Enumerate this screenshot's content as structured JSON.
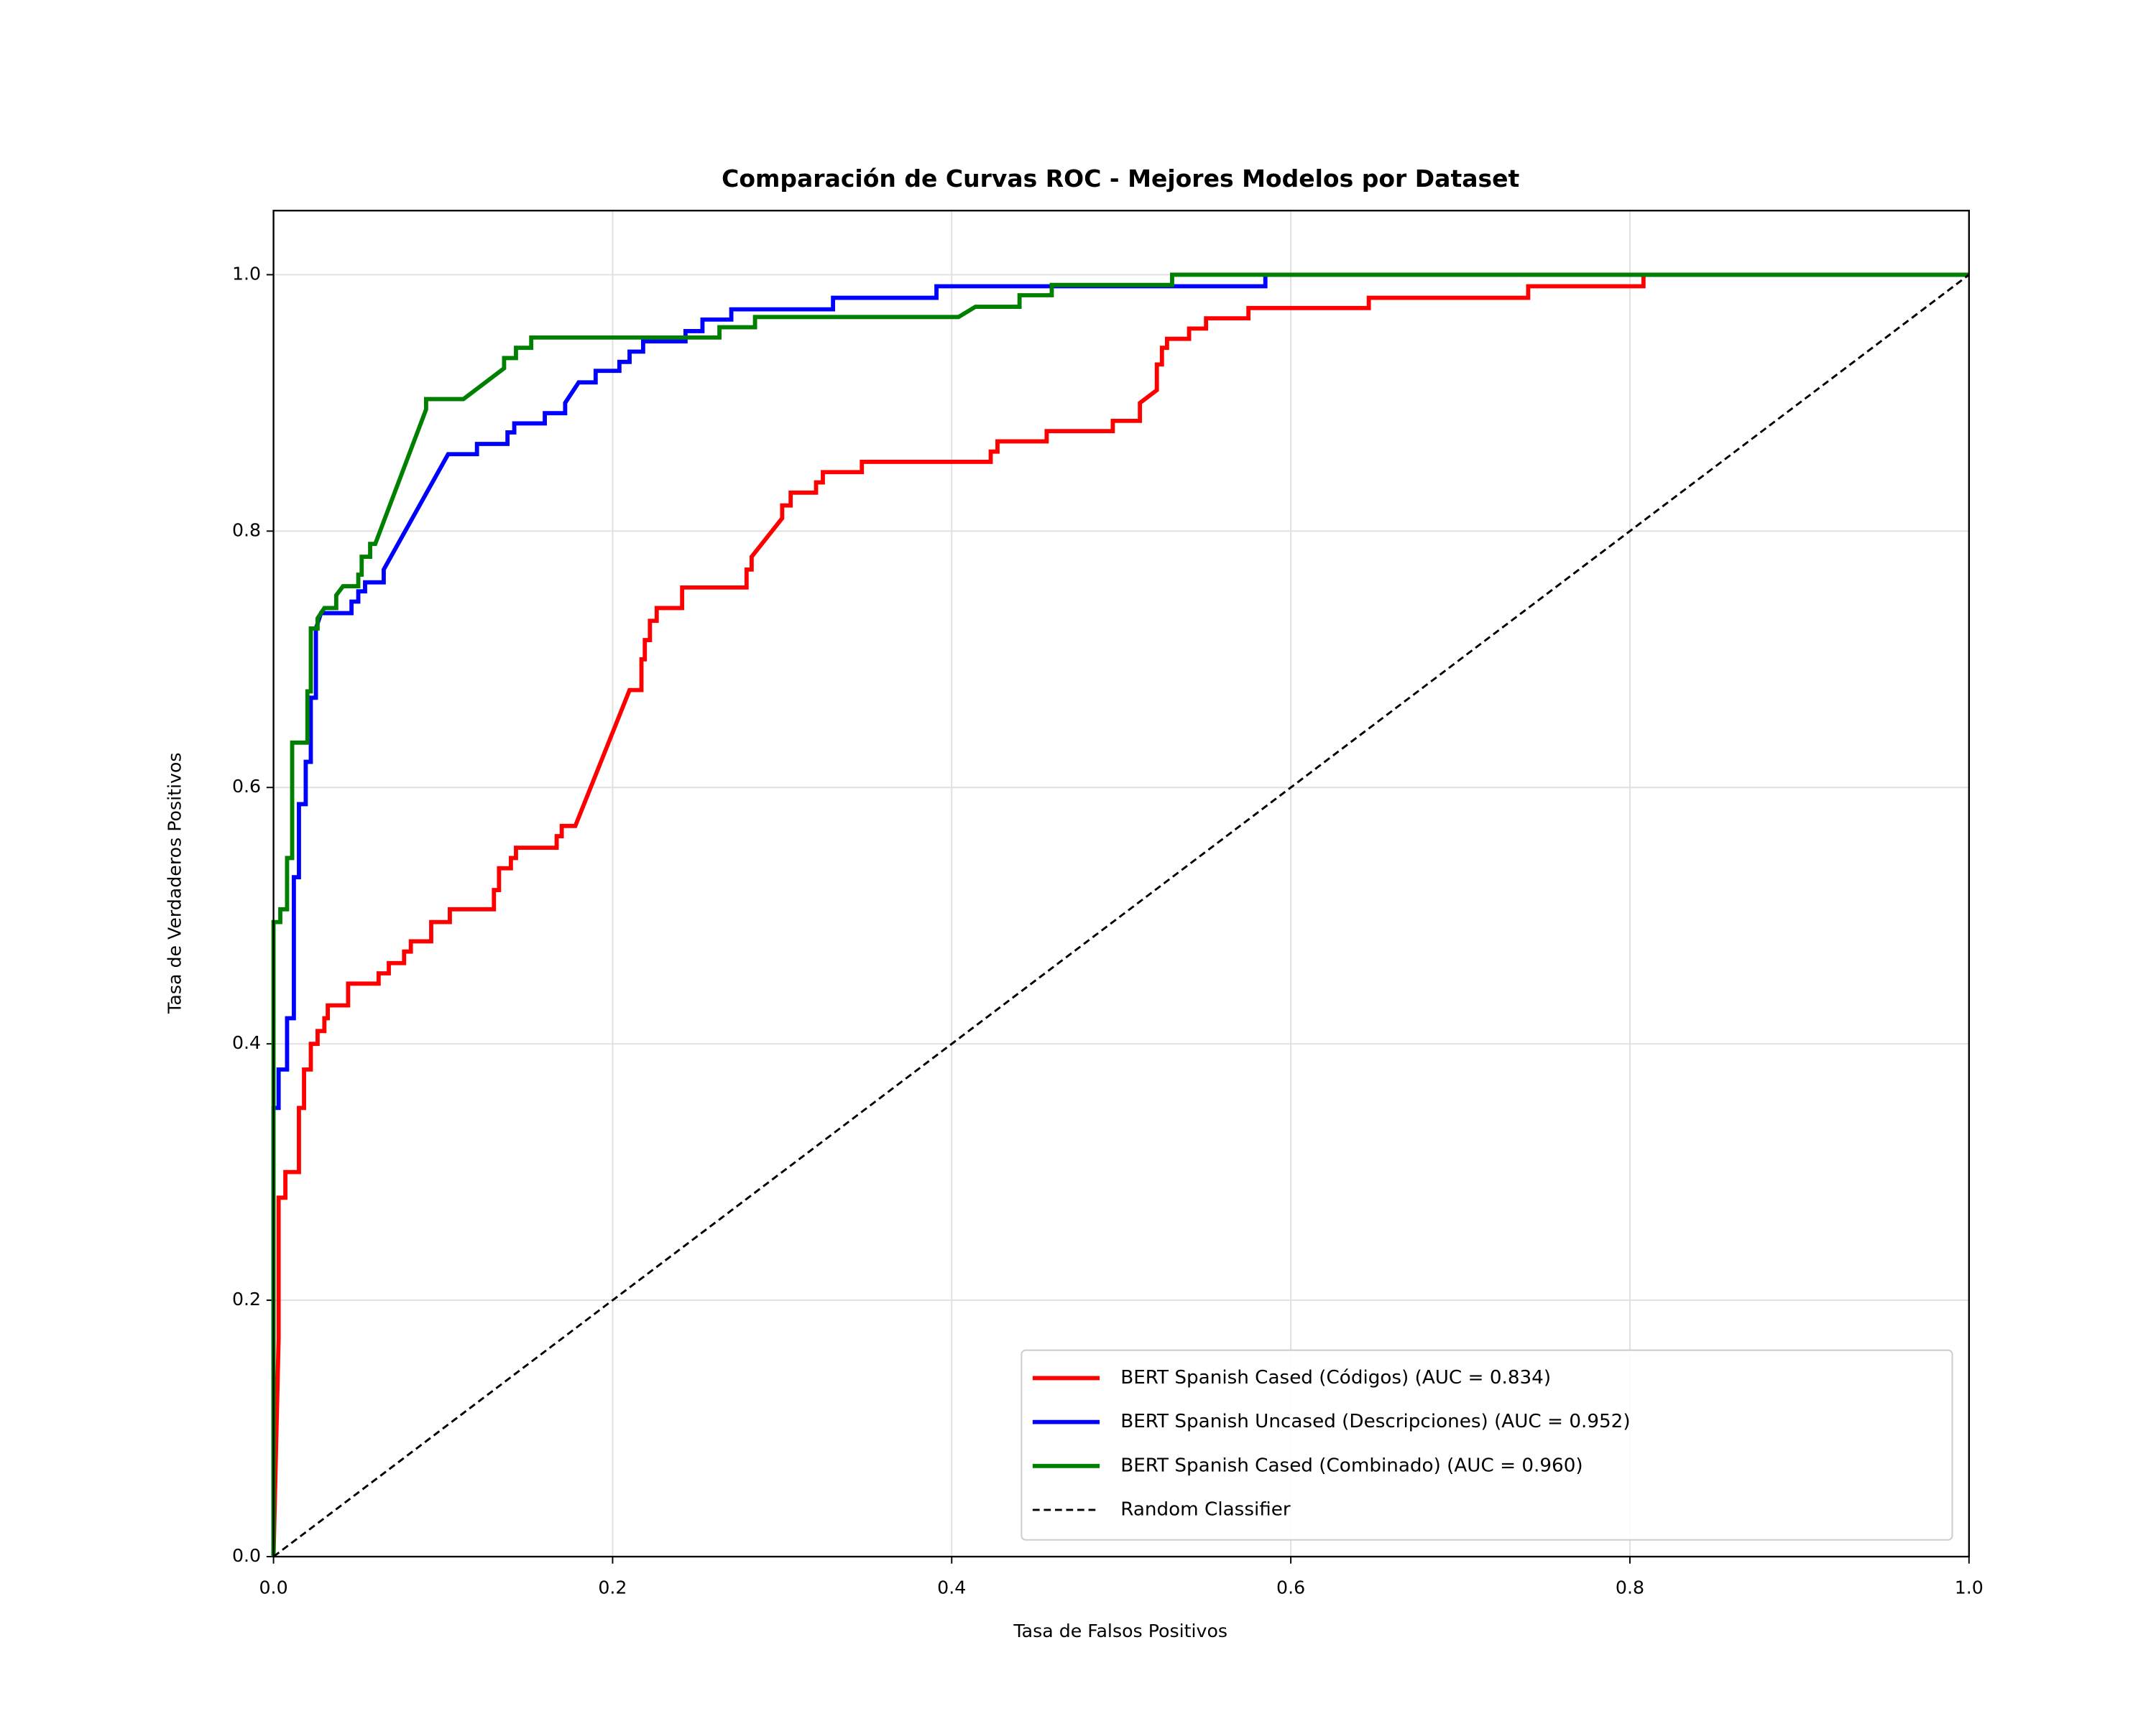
{
  "chart_data": {
    "type": "line",
    "title": "Comparación de Curvas ROC - Mejores Modelos por Dataset",
    "x_label": "Tasa de Falsos Positivos",
    "y_label": "Tasa de Verdaderos Positivos",
    "xlim": [
      0,
      1
    ],
    "ylim": [
      0,
      1.05
    ],
    "xticks": [
      {
        "value": 0,
        "label": "0.0"
      },
      0.2,
      0.4,
      0.6,
      0.8,
      {
        "value": 1,
        "label": "1.0"
      }
    ],
    "yticks": [
      {
        "value": 0,
        "label": "0.0"
      },
      0.2,
      0.4,
      0.6,
      0.8,
      {
        "value": 1,
        "label": "1.0"
      }
    ],
    "grid": true,
    "legend_position": "lower right",
    "series": [
      {
        "name": "BERT Spanish Cased (Códigos) (AUC = 0.834)",
        "color": "#ff0000",
        "x": [
          0,
          0.003,
          0.003,
          0.007,
          0.007,
          0.015,
          0.015,
          0.018,
          0.018,
          0.022,
          0.022,
          0.026,
          0.026,
          0.03,
          0.03,
          0.032,
          0.032,
          0.044,
          0.044,
          0.062,
          0.062,
          0.068,
          0.068,
          0.077,
          0.077,
          0.081,
          0.081,
          0.093,
          0.093,
          0.104,
          0.104,
          0.13,
          0.13,
          0.133,
          0.133,
          0.14,
          0.14,
          0.143,
          0.143,
          0.167,
          0.167,
          0.17,
          0.17,
          0.178,
          0.21,
          0.217,
          0.217,
          0.219,
          0.219,
          0.222,
          0.222,
          0.226,
          0.226,
          0.241,
          0.241,
          0.279,
          0.279,
          0.282,
          0.282,
          0.3,
          0.3,
          0.305,
          0.305,
          0.32,
          0.32,
          0.324,
          0.324,
          0.347,
          0.347,
          0.423,
          0.423,
          0.427,
          0.427,
          0.456,
          0.456,
          0.495,
          0.495,
          0.511,
          0.511,
          0.521,
          0.521,
          0.524,
          0.524,
          0.527,
          0.527,
          0.54,
          0.54,
          0.55,
          0.55,
          0.575,
          0.575,
          0.646,
          0.646,
          0.74,
          0.74,
          0.808,
          0.808,
          1
        ],
        "y": [
          0,
          0.17,
          0.28,
          0.28,
          0.3,
          0.3,
          0.35,
          0.35,
          0.38,
          0.38,
          0.4,
          0.4,
          0.41,
          0.41,
          0.42,
          0.42,
          0.43,
          0.43,
          0.447,
          0.447,
          0.455,
          0.455,
          0.463,
          0.463,
          0.472,
          0.472,
          0.48,
          0.48,
          0.495,
          0.495,
          0.505,
          0.505,
          0.52,
          0.52,
          0.537,
          0.537,
          0.545,
          0.545,
          0.553,
          0.553,
          0.562,
          0.562,
          0.57,
          0.57,
          0.676,
          0.676,
          0.7,
          0.7,
          0.715,
          0.715,
          0.73,
          0.73,
          0.74,
          0.74,
          0.756,
          0.756,
          0.77,
          0.77,
          0.78,
          0.81,
          0.82,
          0.82,
          0.83,
          0.83,
          0.838,
          0.838,
          0.846,
          0.846,
          0.854,
          0.854,
          0.862,
          0.862,
          0.87,
          0.87,
          0.878,
          0.878,
          0.886,
          0.886,
          0.9,
          0.91,
          0.93,
          0.93,
          0.943,
          0.943,
          0.95,
          0.95,
          0.958,
          0.958,
          0.966,
          0.966,
          0.974,
          0.974,
          0.982,
          0.982,
          0.991,
          0.991,
          1,
          1
        ]
      },
      {
        "name": "BERT Spanish Uncased (Descripciones) (AUC = 0.952)",
        "color": "#0000ff",
        "x": [
          0,
          0,
          0.003,
          0.003,
          0.008,
          0.008,
          0.012,
          0.012,
          0.015,
          0.015,
          0.019,
          0.019,
          0.022,
          0.022,
          0.025,
          0.025,
          0.028,
          0.046,
          0.046,
          0.05,
          0.05,
          0.054,
          0.054,
          0.065,
          0.065,
          0.103,
          0.12,
          0.12,
          0.138,
          0.138,
          0.142,
          0.142,
          0.16,
          0.16,
          0.172,
          0.172,
          0.18,
          0.19,
          0.19,
          0.204,
          0.204,
          0.21,
          0.21,
          0.218,
          0.218,
          0.243,
          0.243,
          0.253,
          0.253,
          0.27,
          0.27,
          0.33,
          0.33,
          0.391,
          0.391,
          0.585,
          0.585,
          1
        ],
        "y": [
          0,
          0.35,
          0.35,
          0.38,
          0.38,
          0.42,
          0.42,
          0.53,
          0.53,
          0.587,
          0.587,
          0.62,
          0.62,
          0.67,
          0.67,
          0.724,
          0.736,
          0.736,
          0.745,
          0.745,
          0.753,
          0.753,
          0.76,
          0.76,
          0.77,
          0.86,
          0.86,
          0.868,
          0.868,
          0.877,
          0.877,
          0.884,
          0.884,
          0.892,
          0.892,
          0.9,
          0.916,
          0.916,
          0.925,
          0.925,
          0.932,
          0.932,
          0.94,
          0.94,
          0.948,
          0.948,
          0.956,
          0.956,
          0.965,
          0.965,
          0.973,
          0.973,
          0.982,
          0.982,
          0.991,
          0.991,
          1,
          1
        ]
      },
      {
        "name": "BERT Spanish Cased (Combinado) (AUC = 0.960)",
        "color": "#008000",
        "x": [
          0,
          0,
          0.004,
          0.004,
          0.008,
          0.008,
          0.011,
          0.011,
          0.02,
          0.02,
          0.022,
          0.022,
          0.026,
          0.026,
          0.03,
          0.037,
          0.037,
          0.041,
          0.05,
          0.05,
          0.052,
          0.052,
          0.057,
          0.057,
          0.06,
          0.09,
          0.09,
          0.112,
          0.136,
          0.136,
          0.143,
          0.143,
          0.152,
          0.152,
          0.263,
          0.263,
          0.284,
          0.284,
          0.404,
          0.414,
          0.44,
          0.44,
          0.459,
          0.459,
          0.53,
          0.53,
          1
        ],
        "y": [
          0,
          0.495,
          0.495,
          0.505,
          0.505,
          0.545,
          0.545,
          0.635,
          0.635,
          0.675,
          0.675,
          0.724,
          0.724,
          0.732,
          0.74,
          0.74,
          0.75,
          0.757,
          0.757,
          0.766,
          0.766,
          0.78,
          0.78,
          0.79,
          0.79,
          0.895,
          0.903,
          0.903,
          0.927,
          0.935,
          0.935,
          0.943,
          0.943,
          0.951,
          0.951,
          0.959,
          0.959,
          0.967,
          0.967,
          0.975,
          0.975,
          0.984,
          0.984,
          0.992,
          0.992,
          1,
          1
        ]
      },
      {
        "name": "Random Classifier",
        "color": "#000000",
        "linestyle": "dashed",
        "x": [
          0,
          1
        ],
        "y": [
          0,
          1
        ]
      }
    ]
  }
}
